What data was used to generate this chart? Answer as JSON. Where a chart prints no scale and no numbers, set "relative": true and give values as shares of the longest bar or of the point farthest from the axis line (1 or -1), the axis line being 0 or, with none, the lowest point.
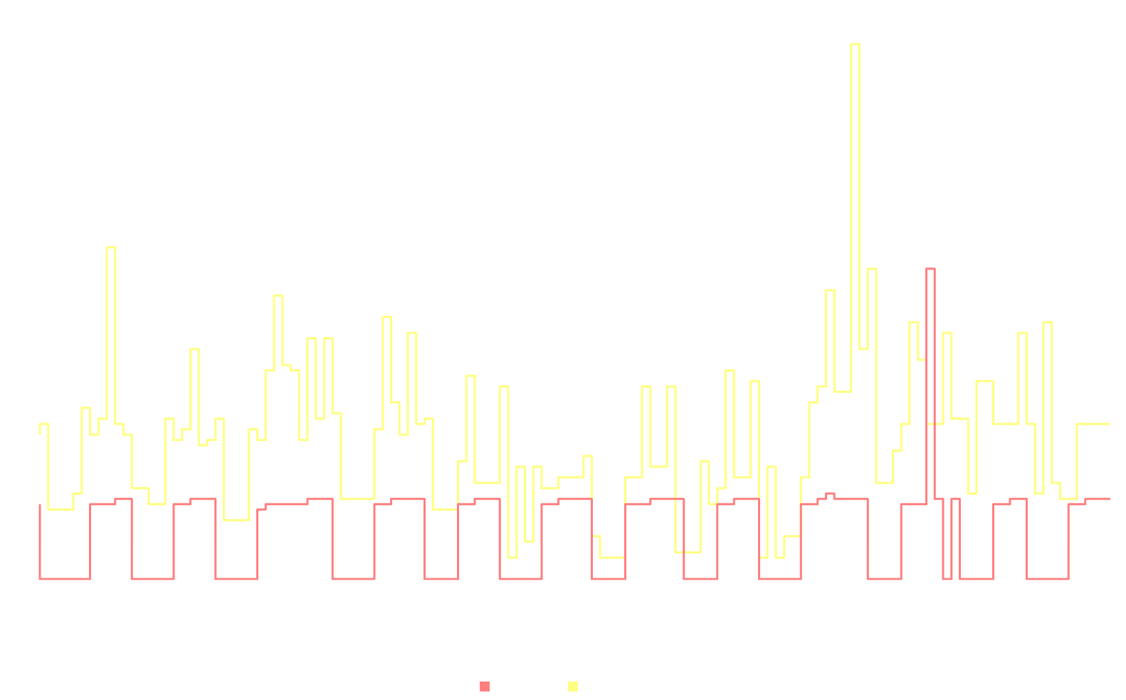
{
  "chart_data": {
    "type": "step",
    "relative": true,
    "grid": false,
    "line_style": "solid",
    "categories": [
      null,
      null,
      null,
      null,
      null,
      null,
      null,
      null,
      null,
      null,
      null,
      null,
      null,
      null,
      null,
      null,
      null,
      null,
      null,
      null,
      null,
      null,
      null,
      null,
      null,
      null,
      null,
      null,
      null,
      null,
      null,
      null,
      null,
      null,
      null,
      null,
      null,
      null,
      null,
      null,
      null,
      null,
      null,
      null,
      null,
      null,
      null,
      null,
      null,
      null,
      null,
      null,
      null,
      null,
      null,
      null,
      null,
      null,
      null,
      null,
      null,
      null,
      null,
      null,
      null,
      null,
      null,
      null,
      null,
      null,
      null,
      null,
      null,
      null,
      null,
      null,
      null,
      null,
      null,
      null,
      null,
      null,
      null,
      null,
      null,
      null,
      null,
      null,
      null,
      null,
      null,
      null,
      null,
      null,
      null,
      null,
      null,
      null,
      null,
      null,
      null,
      null,
      null,
      null,
      null,
      null,
      null,
      null,
      null,
      null,
      null,
      null,
      null,
      null,
      null,
      null,
      null,
      null,
      null,
      null,
      null,
      null,
      null,
      null,
      null,
      null,
      null,
      null,
      null
    ],
    "series": [
      {
        "color": "#ff7f7f",
        "values": [
          0.14,
          0,
          0,
          0,
          0,
          0,
          0,
          0.14,
          0.14,
          0.14,
          0.15,
          0.15,
          0,
          0,
          0,
          0,
          0,
          0.14,
          0.14,
          0.15,
          0.15,
          0.15,
          0,
          0,
          0,
          0,
          0,
          0.13,
          0.14,
          0.14,
          0.14,
          0.14,
          0.14,
          0.15,
          0.15,
          0.15,
          0,
          0,
          0,
          0,
          0,
          0.14,
          0.14,
          0.15,
          0.15,
          0.15,
          0.15,
          0,
          0,
          0,
          0,
          0.14,
          0.14,
          0.15,
          0.15,
          0.15,
          0,
          0,
          0,
          0,
          0,
          0.14,
          0.14,
          0.15,
          0.15,
          0.15,
          0.15,
          0,
          0,
          0,
          0,
          0.14,
          0.14,
          0.14,
          0.15,
          0.15,
          0.15,
          0.15,
          0,
          0,
          0,
          0,
          0.14,
          0.14,
          0.15,
          0.15,
          0.15,
          0,
          0,
          0,
          0,
          0,
          0.14,
          0.14,
          0.15,
          0.16,
          0.15,
          0.15,
          0.15,
          0.15,
          0,
          0,
          0,
          0,
          0.14,
          0.14,
          0.14,
          0.58,
          0.15,
          0,
          0.15,
          0,
          0,
          0,
          0,
          0.14,
          0.14,
          0.15,
          0.15,
          0,
          0,
          0,
          0,
          0,
          0.14,
          0.14,
          0.15,
          0.15,
          0.15
        ]
      },
      {
        "color": "#ffff80",
        "values": [
          0.27,
          0.29,
          0.13,
          0.13,
          0.13,
          0.16,
          0.32,
          0.27,
          0.3,
          0.62,
          0.29,
          0.27,
          0.17,
          0.17,
          0.14,
          0.14,
          0.3,
          0.26,
          0.28,
          0.43,
          0.25,
          0.26,
          0.3,
          0.11,
          0.11,
          0.11,
          0.28,
          0.26,
          0.39,
          0.53,
          0.4,
          0.39,
          0.26,
          0.45,
          0.3,
          0.45,
          0.31,
          0.15,
          0.15,
          0.15,
          0.15,
          0.28,
          0.49,
          0.33,
          0.27,
          0.46,
          0.29,
          0.3,
          0.13,
          0.13,
          0.13,
          0.22,
          0.38,
          0.18,
          0.18,
          0.18,
          0.36,
          0.04,
          0.21,
          0.07,
          0.21,
          0.17,
          0.17,
          0.19,
          0.19,
          0.19,
          0.23,
          0.08,
          0.04,
          0.04,
          0.04,
          0.19,
          0.19,
          0.36,
          0.21,
          0.21,
          0.36,
          0.05,
          0.05,
          0.05,
          0.22,
          0.14,
          0.17,
          0.39,
          0.19,
          0.19,
          0.37,
          0.04,
          0.21,
          0.04,
          0.08,
          0.08,
          0.19,
          0.33,
          0.36,
          0.54,
          0.35,
          0.35,
          1,
          0.43,
          0.58,
          0.18,
          0.18,
          0.24,
          0.29,
          0.48,
          0.41,
          0.29,
          0.29,
          0.46,
          0.3,
          0.3,
          0.16,
          0.37,
          0.37,
          0.29,
          0.29,
          0.29,
          0.46,
          0.29,
          0.16,
          0.48,
          0.18,
          0.15,
          0.15,
          0.29,
          0.29,
          0.29,
          0.29
        ]
      }
    ]
  }
}
